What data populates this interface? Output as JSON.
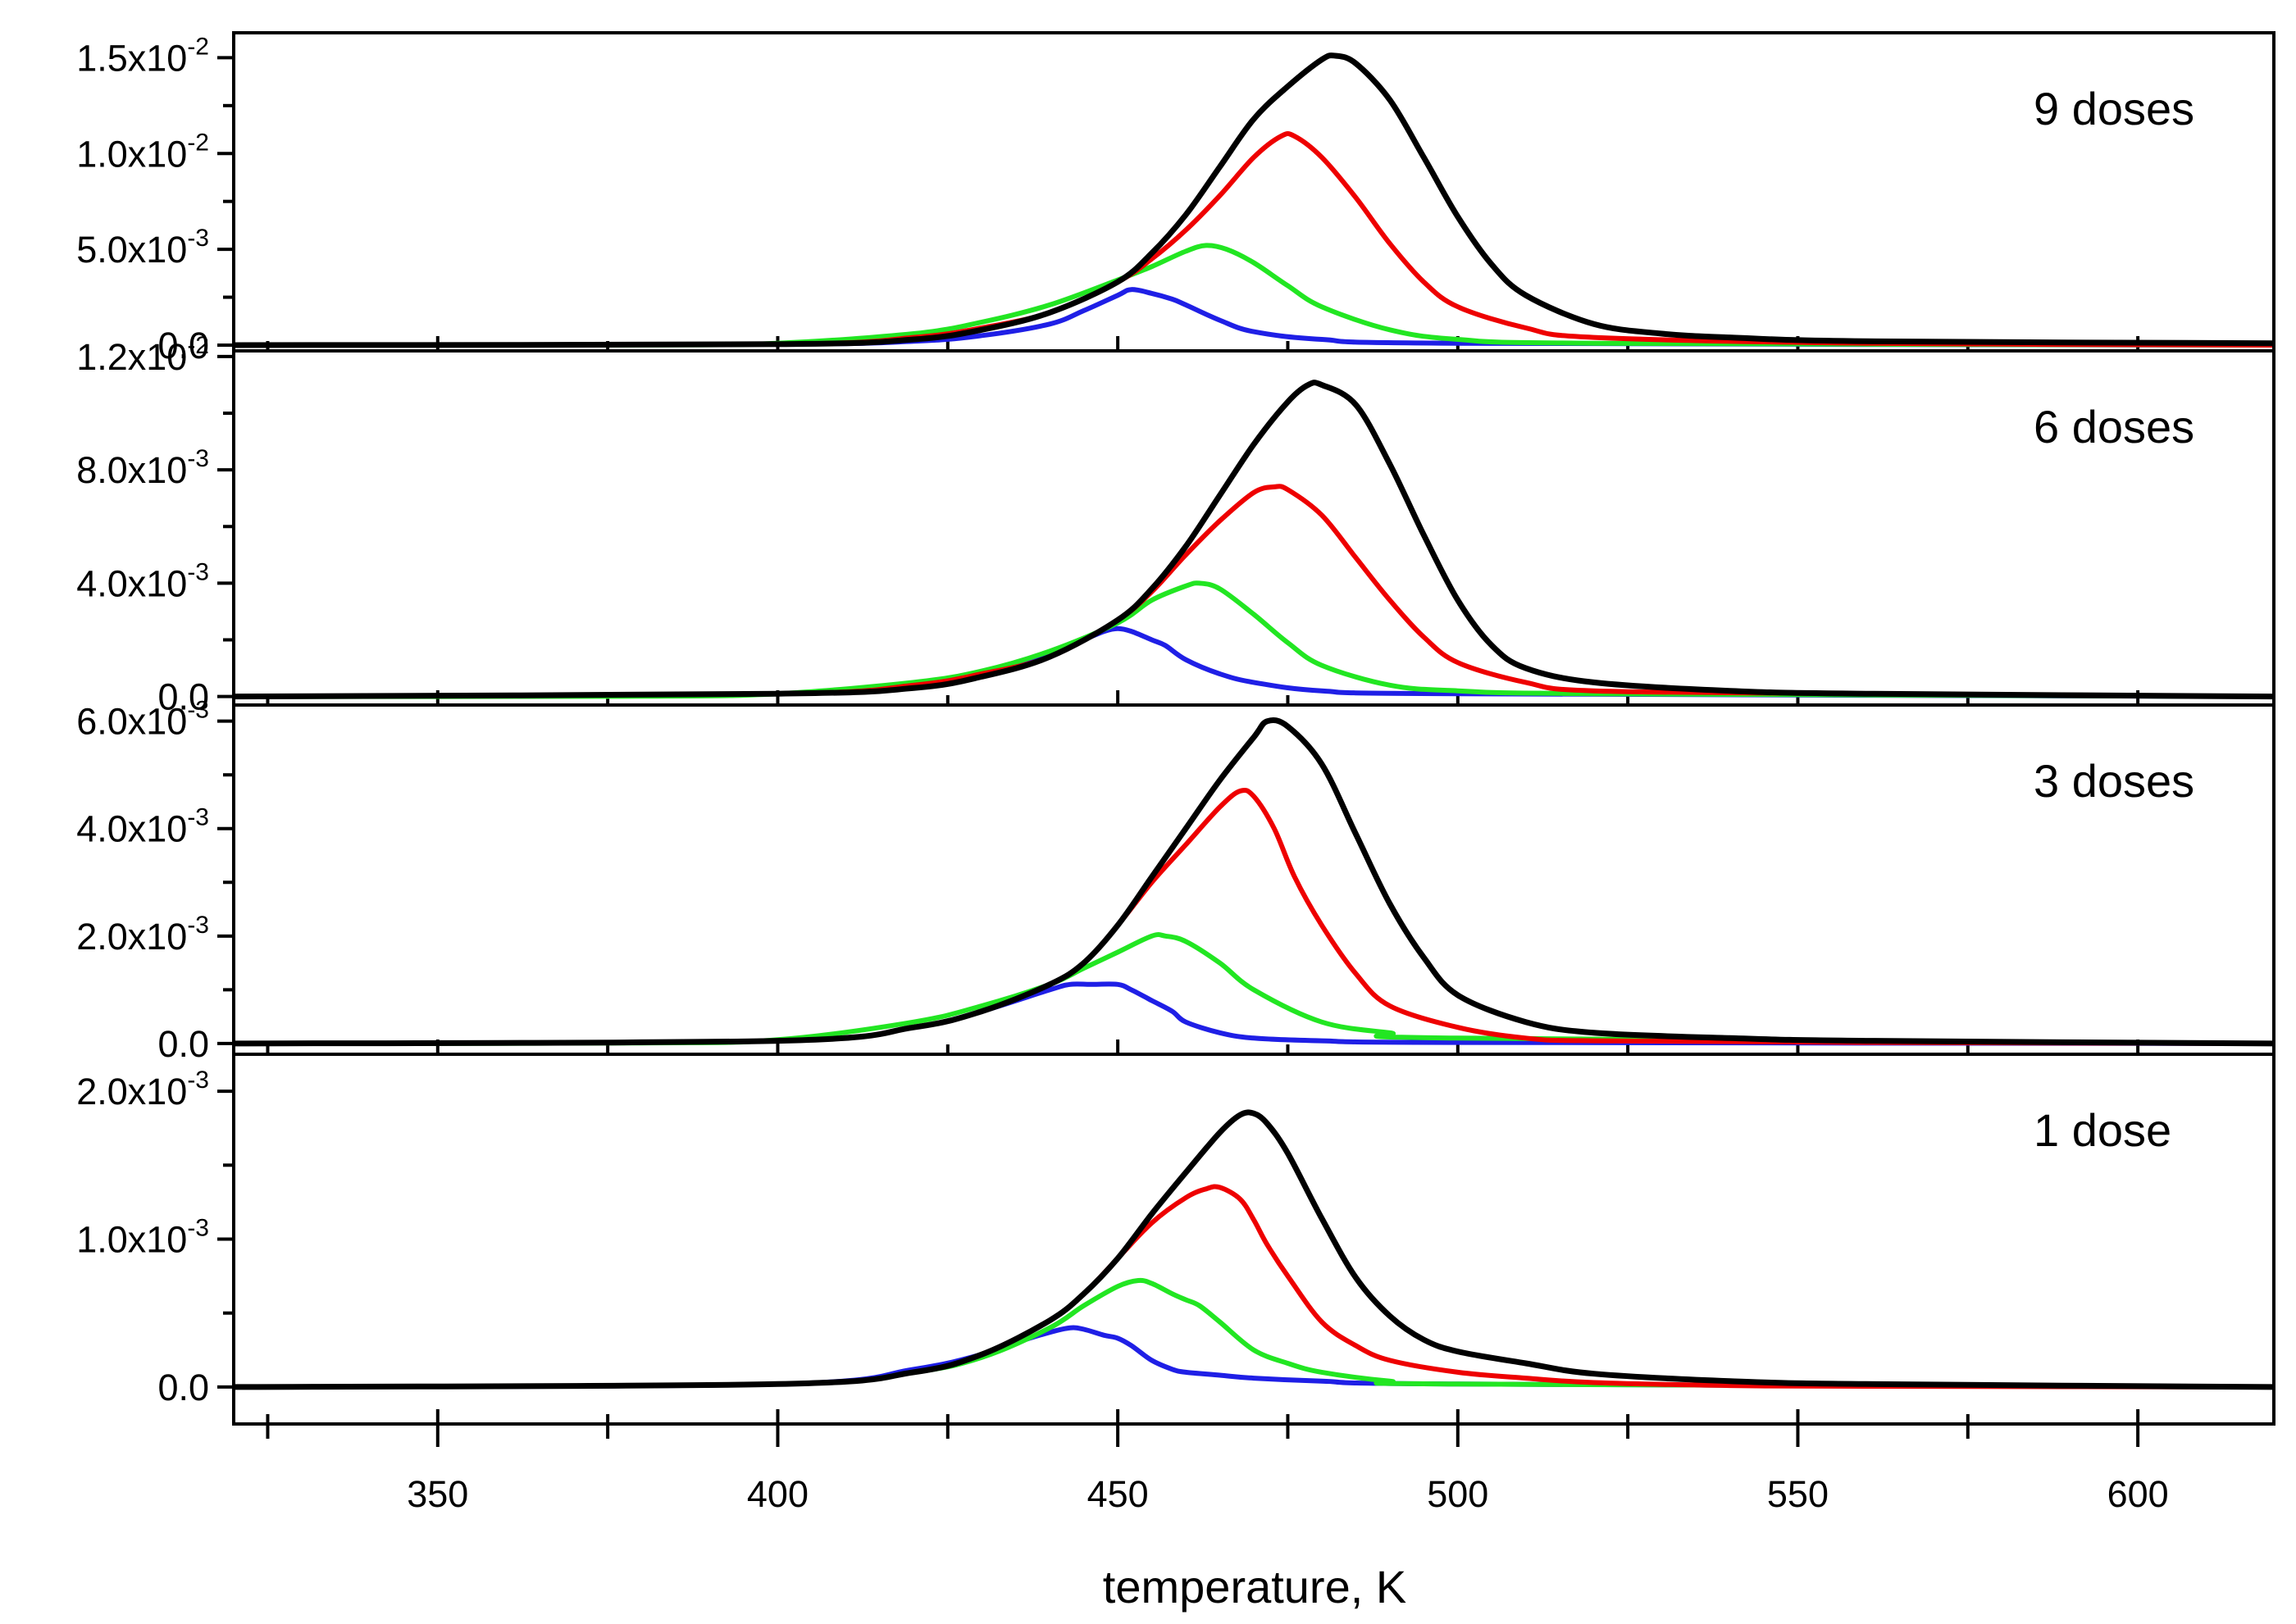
{
  "chart_data": {
    "type": "line",
    "title": "",
    "xlabel": "temperature, K",
    "xlim": [
      320,
      620
    ],
    "x_ticks": [
      350,
      400,
      450,
      500,
      550,
      600
    ],
    "x_tick_labels": [
      "350",
      "400",
      "450",
      "500",
      "550",
      "600"
    ],
    "series_colors": {
      "blue": "#1f1fe6",
      "green": "#22e622",
      "red": "#ee0000",
      "black": "#000000"
    },
    "panels": [
      {
        "label": "9 doses",
        "ylim": [
          -0.0003,
          0.0163
        ],
        "yticks": [
          0,
          0.005,
          0.01,
          0.015
        ],
        "ytick_labels": [
          {
            "mant": "0.0",
            "exp": ""
          },
          {
            "mant": "5.0x10",
            "exp": "-3"
          },
          {
            "mant": "1.0x10",
            "exp": "-2"
          },
          {
            "mant": "1.5x10",
            "exp": "-2"
          }
        ],
        "series": [
          {
            "color": "blue",
            "x": [
              320,
              400,
              420,
              430,
              440,
              445,
              450,
              452,
              455,
              458,
              460,
              465,
              470,
              480,
              500,
              620
            ],
            "y": [
              0,
              5e-05,
              0.0002,
              0.0005,
              0.0011,
              0.0018,
              0.0026,
              0.0029,
              0.0027,
              0.0024,
              0.0021,
              0.0013,
              0.0007,
              0.0003,
              0.0001,
              0
            ]
          },
          {
            "color": "green",
            "x": [
              320,
              380,
              400,
              420,
              430,
              440,
              450,
              455,
              460,
              463,
              466,
              470,
              475,
              480,
              490,
              500,
              520,
              620
            ],
            "y": [
              0,
              1e-05,
              0.0001,
              0.0006,
              0.0012,
              0.0021,
              0.0034,
              0.0041,
              0.0049,
              0.0052,
              0.005,
              0.0043,
              0.0031,
              0.002,
              0.0008,
              0.0003,
              0.0001,
              0
            ]
          },
          {
            "color": "red",
            "x": [
              320,
              400,
              420,
              430,
              440,
              450,
              455,
              460,
              465,
              470,
              474,
              476,
              480,
              485,
              490,
              495,
              500,
              510,
              520,
              560,
              620
            ],
            "y": [
              0,
              5e-05,
              0.0004,
              0.0009,
              0.0017,
              0.0033,
              0.0045,
              0.006,
              0.0078,
              0.0098,
              0.0109,
              0.0109,
              0.0098,
              0.0077,
              0.0053,
              0.0033,
              0.002,
              0.0009,
              0.0004,
              0.0001,
              0
            ]
          },
          {
            "color": "black",
            "x": [
              320,
              400,
              420,
              430,
              440,
              450,
              455,
              460,
              465,
              470,
              475,
              480,
              482,
              485,
              490,
              495,
              500,
              505,
              510,
              520,
              530,
              540,
              560,
              620
            ],
            "y": [
              0,
              5e-05,
              0.0003,
              0.0008,
              0.0017,
              0.0033,
              0.0048,
              0.0068,
              0.0093,
              0.0118,
              0.0135,
              0.0149,
              0.0151,
              0.0147,
              0.0128,
              0.0098,
              0.0067,
              0.0042,
              0.0026,
              0.0011,
              0.0006,
              0.0004,
              0.0002,
              0.0001
            ]
          }
        ]
      },
      {
        "label": "6 doses",
        "ylim": [
          -0.0003,
          0.0122
        ],
        "yticks": [
          0,
          0.004,
          0.008,
          0.012
        ],
        "ytick_labels": [
          {
            "mant": "0.0",
            "exp": ""
          },
          {
            "mant": "4.0x10",
            "exp": "-3"
          },
          {
            "mant": "8.0x10",
            "exp": "-3"
          },
          {
            "mant": "1.2x10",
            "exp": "-2"
          }
        ],
        "series": [
          {
            "color": "blue",
            "x": [
              320,
              400,
              420,
              430,
              440,
              445,
              448,
              450,
              452,
              455,
              457,
              460,
              465,
              470,
              480,
              500,
              620
            ],
            "y": [
              0,
              0.0001,
              0.0004,
              0.0008,
              0.0015,
              0.002,
              0.0023,
              0.0024,
              0.0023,
              0.002,
              0.0018,
              0.0013,
              0.0008,
              0.0005,
              0.0002,
              0.0001,
              0
            ]
          },
          {
            "color": "green",
            "x": [
              320,
              380,
              400,
              420,
              430,
              440,
              450,
              455,
              460,
              462,
              465,
              470,
              475,
              480,
              490,
              500,
              520,
              620
            ],
            "y": [
              0,
              1e-05,
              0.0001,
              0.0005,
              0.0009,
              0.0016,
              0.0026,
              0.0034,
              0.0039,
              0.004,
              0.0038,
              0.0029,
              0.0019,
              0.0011,
              0.0004,
              0.0002,
              0.0001,
              0
            ]
          },
          {
            "color": "red",
            "x": [
              320,
              400,
              420,
              430,
              440,
              450,
              455,
              460,
              465,
              470,
              473,
              475,
              480,
              485,
              490,
              495,
              500,
              510,
              520,
              560,
              620
            ],
            "y": [
              0,
              0.0001,
              0.0004,
              0.0008,
              0.0014,
              0.0027,
              0.0037,
              0.005,
              0.0062,
              0.0072,
              0.0074,
              0.0073,
              0.0064,
              0.0049,
              0.0034,
              0.0021,
              0.0012,
              0.0005,
              0.0002,
              0.0001,
              0
            ]
          },
          {
            "color": "black",
            "x": [
              320,
              400,
              420,
              430,
              440,
              450,
              455,
              460,
              465,
              470,
              475,
              478,
              480,
              485,
              490,
              495,
              500,
              505,
              510,
              520,
              540,
              560,
              620
            ],
            "y": [
              0,
              0.0001,
              0.0003,
              0.0007,
              0.0014,
              0.0027,
              0.0038,
              0.0053,
              0.0071,
              0.0089,
              0.0104,
              0.011,
              0.011,
              0.0103,
              0.0082,
              0.0057,
              0.0034,
              0.0018,
              0.001,
              0.0005,
              0.0002,
              0.0001,
              0
            ]
          }
        ]
      },
      {
        "label": "3 doses",
        "ylim": [
          -0.0002,
          0.0063
        ],
        "yticks": [
          0,
          0.002,
          0.004,
          0.006
        ],
        "ytick_labels": [
          {
            "mant": "0.0",
            "exp": ""
          },
          {
            "mant": "2.0x10",
            "exp": "-3"
          },
          {
            "mant": "4.0x10",
            "exp": "-3"
          },
          {
            "mant": "6.0x10",
            "exp": "-3"
          }
        ],
        "series": [
          {
            "color": "blue",
            "x": [
              320,
              400,
              420,
              430,
              440,
              443,
              446,
              450,
              452,
              455,
              458,
              460,
              465,
              470,
              480,
              500,
              620
            ],
            "y": [
              0,
              5e-05,
              0.0003,
              0.0006,
              0.001,
              0.0011,
              0.0011,
              0.0011,
              0.001,
              0.0008,
              0.0006,
              0.0004,
              0.0002,
              0.0001,
              5e-05,
              2e-05,
              0
            ]
          },
          {
            "color": "green",
            "x": [
              320,
              380,
              400,
              420,
              430,
              440,
              445,
              450,
              455,
              457,
              460,
              465,
              470,
              480,
              490,
              500,
              620
            ],
            "y": [
              0,
              1e-05,
              7e-05,
              0.0004,
              0.0007,
              0.0011,
              0.0014,
              0.0017,
              0.002,
              0.002,
              0.0019,
              0.0015,
              0.001,
              0.0004,
              0.0002,
              0.0001,
              0
            ]
          },
          {
            "color": "red",
            "x": [
              320,
              400,
              420,
              430,
              440,
              445,
              450,
              455,
              460,
              465,
              468,
              470,
              473,
              476,
              480,
              485,
              490,
              500,
              510,
              520,
              560,
              620
            ],
            "y": [
              0,
              5e-05,
              0.0003,
              0.0006,
              0.0011,
              0.0015,
              0.0022,
              0.003,
              0.0037,
              0.0044,
              0.0047,
              0.0046,
              0.004,
              0.0031,
              0.0022,
              0.0013,
              0.0007,
              0.0003,
              0.0001,
              5e-05,
              2e-05,
              0
            ]
          },
          {
            "color": "black",
            "x": [
              320,
              400,
              420,
              430,
              440,
              445,
              450,
              455,
              460,
              465,
              470,
              472,
              475,
              480,
              485,
              490,
              495,
              500,
              510,
              520,
              540,
              560,
              620
            ],
            "y": [
              0,
              5e-05,
              0.0003,
              0.0006,
              0.0011,
              0.0015,
              0.0022,
              0.0031,
              0.004,
              0.0049,
              0.0057,
              0.006,
              0.0059,
              0.0052,
              0.0039,
              0.0026,
              0.0016,
              0.0009,
              0.0004,
              0.0002,
              0.0001,
              5e-05,
              0
            ]
          }
        ]
      },
      {
        "label": "1 dose",
        "ylim": [
          -0.00025,
          0.00225
        ],
        "yticks": [
          0,
          0.001,
          0.002
        ],
        "ytick_labels": [
          {
            "mant": "0.0",
            "exp": ""
          },
          {
            "mant": "1.0x10",
            "exp": "-3"
          },
          {
            "mant": "2.0x10",
            "exp": "-3"
          }
        ],
        "series": [
          {
            "color": "blue",
            "x": [
              320,
              400,
              420,
              430,
              435,
              440,
              443,
              445,
              448,
              450,
              452,
              455,
              458,
              460,
              465,
              470,
              480,
              500,
              620
            ],
            "y": [
              0,
              2e-05,
              0.00012,
              0.00022,
              0.0003,
              0.00037,
              0.0004,
              0.00039,
              0.00035,
              0.00033,
              0.00028,
              0.00018,
              0.00012,
              0.0001,
              8e-05,
              6e-05,
              4e-05,
              2e-05,
              0
            ]
          },
          {
            "color": "green",
            "x": [
              320,
              400,
              420,
              430,
              440,
              445,
              450,
              453,
              455,
              458,
              460,
              462,
              465,
              470,
              475,
              480,
              490,
              500,
              620
            ],
            "y": [
              0,
              2e-05,
              0.0001,
              0.0002,
              0.0004,
              0.00055,
              0.00068,
              0.00072,
              0.0007,
              0.00063,
              0.00059,
              0.00055,
              0.00044,
              0.00025,
              0.00016,
              0.0001,
              4e-05,
              2e-05,
              0
            ]
          },
          {
            "color": "red",
            "x": [
              320,
              400,
              420,
              430,
              440,
              445,
              450,
              455,
              460,
              463,
              465,
              468,
              470,
              472,
              475,
              480,
              485,
              490,
              500,
              510,
              520,
              540,
              560,
              620
            ],
            "y": [
              0,
              2e-05,
              0.0001,
              0.00022,
              0.00045,
              0.00063,
              0.00087,
              0.00111,
              0.00128,
              0.00134,
              0.00135,
              0.00127,
              0.00113,
              0.00096,
              0.00075,
              0.00044,
              0.00028,
              0.00018,
              0.0001,
              6e-05,
              3e-05,
              1e-05,
              5e-06,
              0
            ]
          },
          {
            "color": "black",
            "x": [
              320,
              400,
              420,
              430,
              440,
              445,
              450,
              455,
              460,
              465,
              468,
              470,
              472,
              475,
              480,
              485,
              490,
              495,
              500,
              510,
              520,
              540,
              560,
              620
            ],
            "y": [
              0,
              2e-05,
              0.0001,
              0.00022,
              0.00045,
              0.00063,
              0.00087,
              0.00117,
              0.00145,
              0.00172,
              0.00184,
              0.00185,
              0.00178,
              0.00158,
              0.00114,
              0.00074,
              0.00048,
              0.00032,
              0.00024,
              0.00016,
              9e-05,
              4e-05,
              2e-05,
              0
            ]
          }
        ]
      }
    ]
  }
}
